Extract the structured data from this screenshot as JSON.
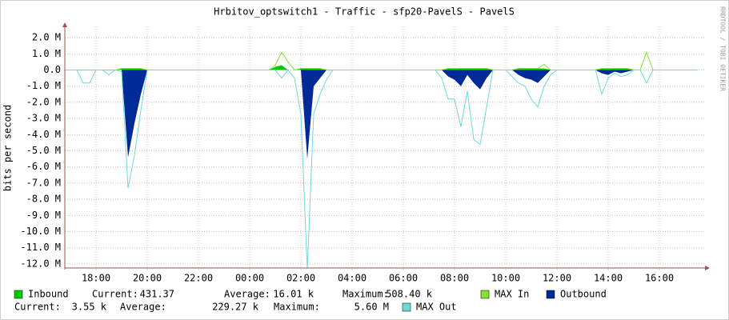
{
  "chart_data": {
    "type": "area",
    "title": "Hrbitov_optswitch1 - Traffic - sfp20-PavelS - PavelS",
    "y_label": "bits per second",
    "watermark": "RRDTOOL / TOBI OETIKER",
    "grid": true,
    "categories": [
      null,
      null,
      null,
      null,
      null,
      "18:00",
      null,
      null,
      null,
      null,
      null,
      null,
      null,
      "20:00",
      null,
      null,
      null,
      null,
      null,
      null,
      null,
      "22:00",
      null,
      null,
      null,
      null,
      null,
      null,
      null,
      "00:00",
      null,
      null,
      null,
      null,
      null,
      null,
      null,
      "02:00",
      null,
      null,
      null,
      null,
      null,
      null,
      null,
      "04:00",
      null,
      null,
      null,
      null,
      null,
      null,
      null,
      "06:00",
      null,
      null,
      null,
      null,
      null,
      null,
      null,
      "08:00",
      null,
      null,
      null,
      null,
      null,
      null,
      null,
      "10:00",
      null,
      null,
      null,
      null,
      null,
      null,
      null,
      "12:00",
      null,
      null,
      null,
      null,
      null,
      null,
      null,
      "14:00",
      null,
      null,
      null,
      null,
      null,
      null,
      null,
      "16:00",
      null,
      null,
      null,
      null,
      null,
      null
    ],
    "ylim": [
      -12350000,
      2700000
    ],
    "yticks": [
      {
        "value": 2000000,
        "label": "2.0 M"
      },
      {
        "value": 1000000,
        "label": "1.0 M"
      },
      {
        "value": 0,
        "label": "0.0"
      },
      {
        "value": -1000000,
        "label": "-1.0 M"
      },
      {
        "value": -2000000,
        "label": "-2.0 M"
      },
      {
        "value": -3000000,
        "label": "-3.0 M"
      },
      {
        "value": -4000000,
        "label": "-4.0 M"
      },
      {
        "value": -5000000,
        "label": "-5.0 M"
      },
      {
        "value": -6000000,
        "label": "-6.0 M"
      },
      {
        "value": -7000000,
        "label": "-7.0 M"
      },
      {
        "value": -8000000,
        "label": "-8.0 M"
      },
      {
        "value": -9000000,
        "label": "-9.0 M"
      },
      {
        "value": -10000000,
        "label": "-10.0 M"
      },
      {
        "value": -11000000,
        "label": "-11.0 M"
      },
      {
        "value": -12000000,
        "label": "-12.0 M"
      }
    ],
    "series": [
      {
        "name": "Inbound",
        "color": "#00cc00",
        "style": "area",
        "stats": [
          [
            "Current:",
            "431.37"
          ],
          [
            "Average:",
            "16.01 k"
          ],
          [
            "Maximum:",
            "508.40 k"
          ]
        ],
        "values": [
          0,
          0,
          0,
          0,
          0,
          0,
          0,
          0,
          0,
          100000.0,
          100000.0,
          100000.0,
          100000.0,
          0,
          0,
          0,
          0,
          0,
          0,
          0,
          0,
          0,
          0,
          0,
          0,
          0,
          0,
          0,
          0,
          0,
          0,
          0,
          0,
          200000.0,
          300000.0,
          0,
          0,
          100000.0,
          100000.0,
          100000.0,
          100000.0,
          0,
          0,
          0,
          0,
          0,
          0,
          0,
          0,
          0,
          0,
          0,
          0,
          0,
          0,
          0,
          0,
          0,
          0,
          0,
          100000.0,
          100000.0,
          100000.0,
          100000.0,
          100000.0,
          100000.0,
          100000.0,
          0,
          0,
          0,
          0,
          100000.0,
          100000.0,
          100000.0,
          100000.0,
          100000.0,
          0,
          0,
          0,
          0,
          0,
          0,
          0,
          0,
          100000.0,
          100000.0,
          100000.0,
          100000.0,
          100000.0,
          0,
          0,
          0,
          0,
          0,
          0,
          0,
          0,
          0,
          0,
          0
        ]
      },
      {
        "name": "MAX In",
        "color": "#88e030",
        "style": "line",
        "values": [
          0,
          0,
          0,
          0,
          0,
          0,
          0,
          0,
          0,
          100000.0,
          100000.0,
          100000.0,
          100000.0,
          0,
          0,
          0,
          0,
          0,
          0,
          0,
          0,
          0,
          0,
          0,
          0,
          0,
          0,
          0,
          0,
          0,
          0,
          0,
          0,
          300000.0,
          1100000.0,
          500000.0,
          0,
          100000.0,
          100000.0,
          100000.0,
          100000.0,
          0,
          0,
          0,
          0,
          0,
          0,
          0,
          0,
          0,
          0,
          0,
          0,
          0,
          0,
          0,
          0,
          0,
          0,
          0,
          100000.0,
          100000.0,
          100000.0,
          100000.0,
          100000.0,
          100000.0,
          100000.0,
          0,
          0,
          0,
          0,
          100000.0,
          100000.0,
          100000.0,
          100000.0,
          350000.0,
          0,
          0,
          0,
          0,
          0,
          0,
          0,
          0,
          100000.0,
          100000.0,
          100000.0,
          100000.0,
          100000.0,
          0,
          0,
          1100000.0,
          0,
          0,
          0,
          0,
          0,
          0,
          0,
          0
        ]
      },
      {
        "name": "Outbound",
        "color": "#002a97",
        "style": "area",
        "stats": [
          [
            "Current:",
            "3.55 k"
          ],
          [
            "Average:",
            "229.27 k"
          ],
          [
            "Maximum:",
            "5.60 M"
          ]
        ],
        "values": [
          0,
          0,
          0,
          0,
          0,
          0,
          0,
          0,
          0,
          0,
          -5400000.0,
          -3300000.0,
          -1500000.0,
          0,
          0,
          0,
          0,
          0,
          0,
          0,
          0,
          0,
          0,
          0,
          0,
          0,
          0,
          0,
          0,
          0,
          0,
          0,
          0,
          0,
          0,
          0,
          0,
          0,
          -5500000.0,
          -1000000.0,
          -500000.0,
          0,
          0,
          0,
          0,
          0,
          0,
          0,
          0,
          0,
          0,
          0,
          0,
          0,
          0,
          0,
          0,
          0,
          0,
          0,
          -400000.0,
          -600000.0,
          -1000000.0,
          -300000.0,
          -800000.0,
          -1200000.0,
          -500000.0,
          0,
          0,
          0,
          0,
          -300000.0,
          -500000.0,
          -600000.0,
          -800000.0,
          -400000.0,
          0,
          0,
          0,
          0,
          0,
          0,
          0,
          0,
          -200000.0,
          -300000.0,
          -100000.0,
          -200000.0,
          -100000.0,
          0,
          0,
          0,
          0,
          0,
          0,
          0,
          0,
          0,
          0,
          0
        ]
      },
      {
        "name": "MAX Out",
        "color": "#6cdbd7",
        "style": "line",
        "values": [
          0,
          0,
          0,
          -800000.0,
          -800000.0,
          0,
          0,
          -300000.0,
          0,
          -100000.0,
          -7300000.0,
          -5300000.0,
          -2500000.0,
          0,
          0,
          0,
          0,
          0,
          0,
          0,
          0,
          0,
          0,
          0,
          0,
          0,
          0,
          0,
          0,
          0,
          0,
          0,
          0,
          0,
          -500000.0,
          0,
          -500000.0,
          -2700000.0,
          -12300000.0,
          -2700000.0,
          -1500000.0,
          -600000.0,
          0,
          0,
          0,
          0,
          0,
          0,
          0,
          0,
          0,
          0,
          0,
          0,
          0,
          0,
          0,
          0,
          0,
          -500000.0,
          -1800000.0,
          -1800000.0,
          -3500000.0,
          -1300000.0,
          -4300000.0,
          -4600000.0,
          -2300000.0,
          0,
          0,
          0,
          -400000.0,
          -800000.0,
          -1000000.0,
          -1800000.0,
          -2300000.0,
          -1000000.0,
          -300000.0,
          0,
          0,
          0,
          0,
          0,
          0,
          0,
          -1500000.0,
          -500000.0,
          -200000.0,
          -400000.0,
          -300000.0,
          0,
          0,
          -800000.0,
          0,
          0,
          0,
          0,
          0,
          0,
          0,
          0
        ]
      }
    ]
  }
}
